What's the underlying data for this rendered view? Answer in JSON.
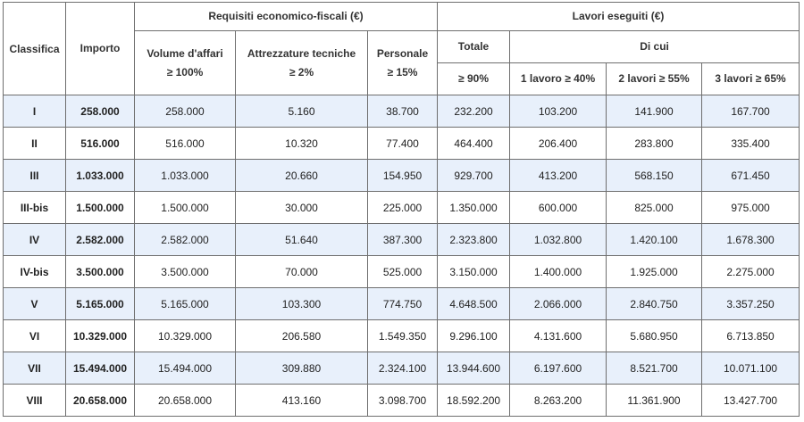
{
  "headers": {
    "classifica": "Classifica",
    "importo": "Importo",
    "requisiti": "Requisiti economico-fiscali (€)",
    "volume_line1": "Volume d'affari",
    "volume_line2": "≥ 100%",
    "attrezzature_line1": "Attrezzature tecniche",
    "attrezzature_line2": "≥ 2%",
    "personale_line1": "Personale",
    "personale_line2": "≥ 15%",
    "lavori": "Lavori eseguiti (€)",
    "totale": "Totale",
    "totale_pct": "≥ 90%",
    "di_cui": "Di cui",
    "lavoro1": "1 lavoro ≥ 40%",
    "lavori2": "2 lavori ≥ 55%",
    "lavori3": "3 lavori ≥ 65%"
  },
  "rows": [
    {
      "classifica": "I",
      "importo": "258.000",
      "volume": "258.000",
      "attrezzature": "5.160",
      "personale": "38.700",
      "totale": "232.200",
      "l1": "103.200",
      "l2": "141.900",
      "l3": "167.700"
    },
    {
      "classifica": "II",
      "importo": "516.000",
      "volume": "516.000",
      "attrezzature": "10.320",
      "personale": "77.400",
      "totale": "464.400",
      "l1": "206.400",
      "l2": "283.800",
      "l3": "335.400"
    },
    {
      "classifica": "III",
      "importo": "1.033.000",
      "volume": "1.033.000",
      "attrezzature": "20.660",
      "personale": "154.950",
      "totale": "929.700",
      "l1": "413.200",
      "l2": "568.150",
      "l3": "671.450"
    },
    {
      "classifica": "III-bis",
      "importo": "1.500.000",
      "volume": "1.500.000",
      "attrezzature": "30.000",
      "personale": "225.000",
      "totale": "1.350.000",
      "l1": "600.000",
      "l2": "825.000",
      "l3": "975.000"
    },
    {
      "classifica": "IV",
      "importo": "2.582.000",
      "volume": "2.582.000",
      "attrezzature": "51.640",
      "personale": "387.300",
      "totale": "2.323.800",
      "l1": "1.032.800",
      "l2": "1.420.100",
      "l3": "1.678.300"
    },
    {
      "classifica": "IV-bis",
      "importo": "3.500.000",
      "volume": "3.500.000",
      "attrezzature": "70.000",
      "personale": "525.000",
      "totale": "3.150.000",
      "l1": "1.400.000",
      "l2": "1.925.000",
      "l3": "2.275.000"
    },
    {
      "classifica": "V",
      "importo": "5.165.000",
      "volume": "5.165.000",
      "attrezzature": "103.300",
      "personale": "774.750",
      "totale": "4.648.500",
      "l1": "2.066.000",
      "l2": "2.840.750",
      "l3": "3.357.250"
    },
    {
      "classifica": "VI",
      "importo": "10.329.000",
      "volume": "10.329.000",
      "attrezzature": "206.580",
      "personale": "1.549.350",
      "totale": "9.296.100",
      "l1": "4.131.600",
      "l2": "5.680.950",
      "l3": "6.713.850"
    },
    {
      "classifica": "VII",
      "importo": "15.494.000",
      "volume": "15.494.000",
      "attrezzature": "309.880",
      "personale": "2.324.100",
      "totale": "13.944.600",
      "l1": "6.197.600",
      "l2": "8.521.700",
      "l3": "10.071.100"
    },
    {
      "classifica": "VIII",
      "importo": "20.658.000",
      "volume": "20.658.000",
      "attrezzature": "413.160",
      "personale": "3.098.700",
      "totale": "18.592.200",
      "l1": "8.263.200",
      "l2": "11.361.900",
      "l3": "13.427.700"
    }
  ]
}
